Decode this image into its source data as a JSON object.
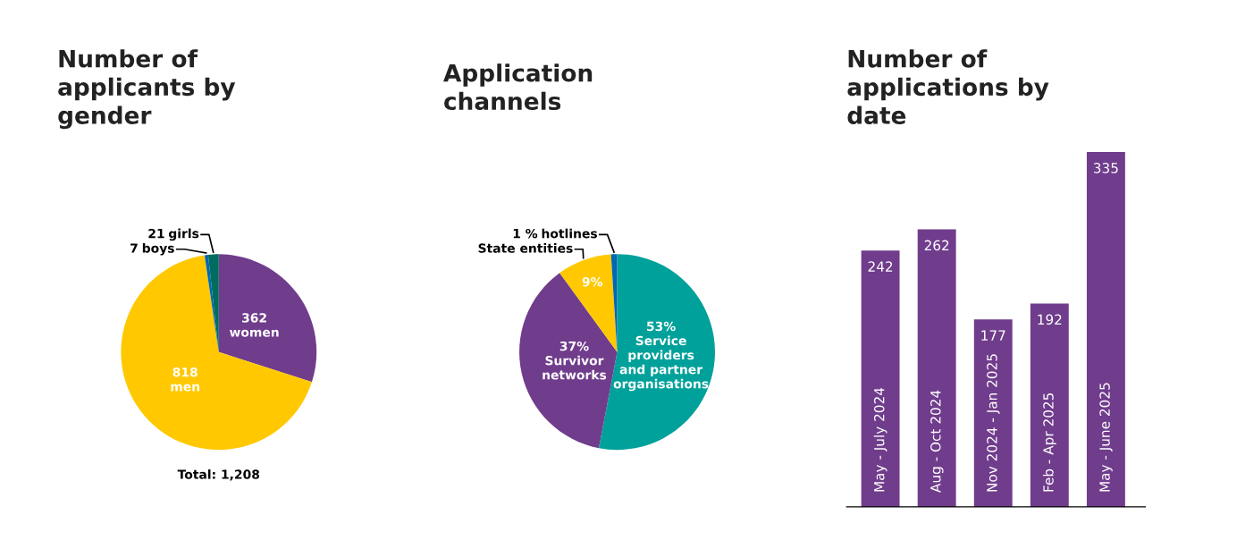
{
  "chart_data": [
    {
      "type": "pie",
      "title": "Number of applicants by gender",
      "categories": [
        "women",
        "men",
        "boys",
        "girls"
      ],
      "values": [
        362,
        818,
        7,
        21
      ],
      "colors": [
        "#703c8c",
        "#ffc800",
        "#0068b4",
        "#006b5f"
      ],
      "data_labels": true,
      "annotations": [
        "Total: 1,208"
      ]
    },
    {
      "type": "pie",
      "title": "Application channels",
      "categories": [
        "Service providers and partner organisations",
        "Survivor networks",
        "State entities",
        "hotlines"
      ],
      "values": [
        53,
        37,
        9,
        1
      ],
      "value_labels": [
        "53%",
        "37%",
        "9%",
        "1 %"
      ],
      "colors": [
        "#00a19a",
        "#703c8c",
        "#ffc800",
        "#0068b4"
      ]
    },
    {
      "type": "bar",
      "title": "Number of applications by date",
      "categories": [
        "May - July 2024",
        "Aug - Oct 2024",
        "Nov 2024 - Jan 2025",
        "Feb - Apr 2025",
        "May - June 2025"
      ],
      "values": [
        242,
        262,
        177,
        192,
        335
      ],
      "color": "#703c8c",
      "data_labels": true
    }
  ]
}
